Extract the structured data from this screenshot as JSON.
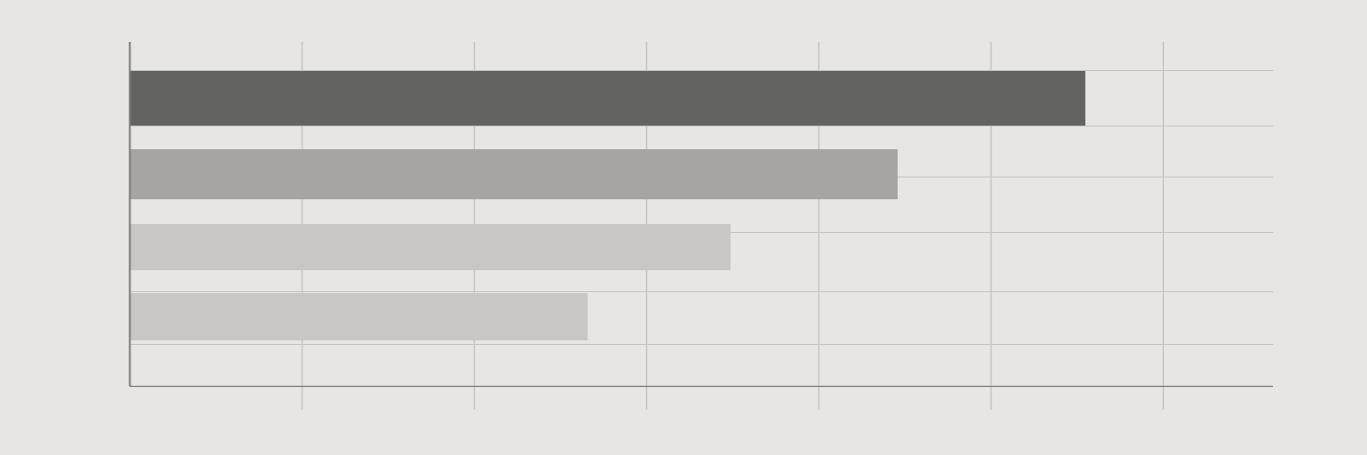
{
  "chart_data": {
    "type": "bar",
    "orientation": "horizontal",
    "title": "",
    "xlabel": "",
    "ylabel": "",
    "categories": [
      "",
      "",
      "",
      ""
    ],
    "values": [
      5.55,
      4.46,
      3.49,
      2.66
    ],
    "xlim": [
      0,
      6.64
    ],
    "x_gridlines": [
      0,
      1,
      2,
      3,
      4,
      5,
      6
    ],
    "grid": true,
    "legend": "none",
    "colors": {
      "background": "#e7e6e3",
      "grid": "#c4c3bf",
      "axis": "#7a7976",
      "bars": [
        "#636361",
        "#a6a5a2",
        "#c8c7c4",
        "#c8c7c4"
      ]
    }
  }
}
